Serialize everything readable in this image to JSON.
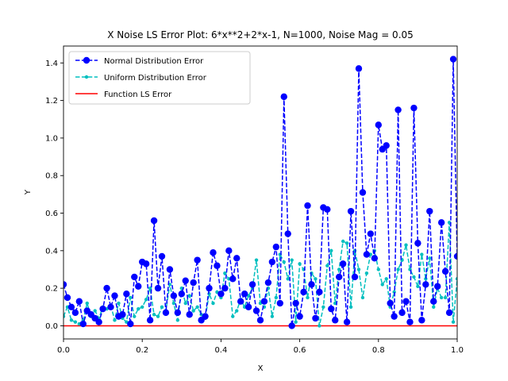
{
  "chart_data": {
    "type": "line",
    "title": "X Noise LS Error Plot: 6*x**2+2*x-1, N=1000, Noise Mag = 0.05",
    "xlabel": "X",
    "ylabel": "Y",
    "xlim": [
      0,
      1.0
    ],
    "ylim": [
      -0.07,
      1.49
    ],
    "x_ticks": [
      "0.0",
      "0.2",
      "0.4",
      "0.6",
      "0.8",
      "1.0"
    ],
    "y_ticks": [
      "0.0",
      "0.2",
      "0.4",
      "0.6",
      "0.8",
      "1.0",
      "1.2",
      "1.4"
    ],
    "grid": false,
    "legend_position": "upper left",
    "series": [
      {
        "name": "Normal Distribution Error",
        "color": "#0000ff",
        "style": "dashed",
        "marker": "circle-large",
        "x": [
          0.0,
          0.01,
          0.02,
          0.03,
          0.04,
          0.05,
          0.06,
          0.07,
          0.08,
          0.09,
          0.1,
          0.11,
          0.12,
          0.13,
          0.14,
          0.15,
          0.16,
          0.17,
          0.18,
          0.19,
          0.2,
          0.21,
          0.22,
          0.23,
          0.24,
          0.25,
          0.26,
          0.27,
          0.28,
          0.29,
          0.3,
          0.31,
          0.32,
          0.33,
          0.34,
          0.35,
          0.36,
          0.37,
          0.38,
          0.39,
          0.4,
          0.41,
          0.42,
          0.43,
          0.44,
          0.45,
          0.46,
          0.47,
          0.48,
          0.49,
          0.5,
          0.51,
          0.52,
          0.53,
          0.54,
          0.55,
          0.56,
          0.57,
          0.58,
          0.59,
          0.6,
          0.61,
          0.62,
          0.63,
          0.64,
          0.65,
          0.66,
          0.67,
          0.68,
          0.69,
          0.7,
          0.71,
          0.72,
          0.73,
          0.74,
          0.75,
          0.76,
          0.77,
          0.78,
          0.79,
          0.8,
          0.81,
          0.82,
          0.83,
          0.84,
          0.85,
          0.86,
          0.87,
          0.88,
          0.89,
          0.9,
          0.91,
          0.92,
          0.93,
          0.94,
          0.95,
          0.96,
          0.97,
          0.98,
          0.99,
          1.0
        ],
        "y": [
          0.22,
          0.15,
          0.1,
          0.07,
          0.13,
          0.01,
          0.08,
          0.06,
          0.04,
          0.02,
          0.09,
          0.2,
          0.1,
          0.16,
          0.05,
          0.06,
          0.17,
          0.01,
          0.26,
          0.21,
          0.34,
          0.33,
          0.03,
          0.56,
          0.2,
          0.37,
          0.07,
          0.3,
          0.16,
          0.07,
          0.17,
          0.24,
          0.06,
          0.23,
          0.35,
          0.03,
          0.05,
          0.2,
          0.39,
          0.32,
          0.17,
          0.2,
          0.4,
          0.25,
          0.36,
          0.13,
          0.17,
          0.1,
          0.22,
          0.08,
          0.03,
          0.13,
          0.23,
          0.34,
          0.42,
          0.12,
          1.22,
          0.49,
          0.0,
          0.12,
          0.05,
          0.18,
          0.64,
          0.22,
          0.04,
          0.18,
          0.63,
          0.62,
          0.09,
          0.03,
          0.26,
          0.33,
          0.02,
          0.61,
          0.26,
          1.37,
          0.71,
          0.38,
          0.49,
          0.36,
          1.07,
          0.94,
          0.96,
          0.12,
          0.05,
          1.15,
          0.07,
          0.13,
          0.02,
          1.16,
          0.44,
          0.03,
          0.22,
          0.61,
          0.13,
          0.21,
          0.55,
          0.29,
          0.07,
          1.42,
          0.37
        ]
      },
      {
        "name": "Uniform Distribution Error",
        "color": "#00bfbf",
        "style": "dashed",
        "marker": "circle-small",
        "x": [
          0.0,
          0.01,
          0.02,
          0.03,
          0.04,
          0.05,
          0.06,
          0.07,
          0.08,
          0.09,
          0.1,
          0.11,
          0.12,
          0.13,
          0.14,
          0.15,
          0.16,
          0.17,
          0.18,
          0.19,
          0.2,
          0.21,
          0.22,
          0.23,
          0.24,
          0.25,
          0.26,
          0.27,
          0.28,
          0.29,
          0.3,
          0.31,
          0.32,
          0.33,
          0.34,
          0.35,
          0.36,
          0.37,
          0.38,
          0.39,
          0.4,
          0.41,
          0.42,
          0.43,
          0.44,
          0.45,
          0.46,
          0.47,
          0.48,
          0.49,
          0.5,
          0.51,
          0.52,
          0.53,
          0.54,
          0.55,
          0.56,
          0.57,
          0.58,
          0.59,
          0.6,
          0.61,
          0.62,
          0.63,
          0.64,
          0.65,
          0.66,
          0.67,
          0.68,
          0.69,
          0.7,
          0.71,
          0.72,
          0.73,
          0.74,
          0.75,
          0.76,
          0.77,
          0.78,
          0.79,
          0.8,
          0.81,
          0.82,
          0.83,
          0.84,
          0.85,
          0.86,
          0.87,
          0.88,
          0.89,
          0.9,
          0.91,
          0.92,
          0.93,
          0.94,
          0.95,
          0.96,
          0.97,
          0.98,
          0.99,
          1.0
        ],
        "y": [
          0.05,
          0.1,
          0.03,
          0.02,
          0.01,
          0.03,
          0.12,
          0.05,
          0.08,
          0.04,
          0.1,
          0.09,
          0.11,
          0.03,
          0.12,
          0.04,
          0.02,
          0.15,
          0.05,
          0.09,
          0.1,
          0.14,
          0.2,
          0.06,
          0.05,
          0.1,
          0.08,
          0.22,
          0.12,
          0.03,
          0.2,
          0.12,
          0.16,
          0.08,
          0.1,
          0.06,
          0.04,
          0.17,
          0.12,
          0.18,
          0.15,
          0.28,
          0.25,
          0.05,
          0.08,
          0.14,
          0.1,
          0.16,
          0.2,
          0.35,
          0.12,
          0.1,
          0.2,
          0.05,
          0.15,
          0.38,
          0.34,
          0.25,
          0.35,
          0.02,
          0.33,
          0.3,
          0.15,
          0.28,
          0.25,
          0.0,
          0.1,
          0.32,
          0.4,
          0.12,
          0.3,
          0.45,
          0.44,
          0.1,
          0.4,
          0.3,
          0.15,
          0.28,
          0.38,
          0.4,
          0.3,
          0.22,
          0.25,
          0.1,
          0.18,
          0.3,
          0.35,
          0.43,
          0.3,
          0.26,
          0.21,
          0.38,
          0.25,
          0.36,
          0.1,
          0.2,
          0.15,
          0.15,
          0.55,
          0.02,
          0.25
        ]
      },
      {
        "name": "Function LS Error",
        "color": "#ff0000",
        "style": "solid",
        "marker": "none",
        "x": [
          0.0,
          1.0
        ],
        "y": [
          0.0,
          0.0
        ]
      }
    ]
  }
}
